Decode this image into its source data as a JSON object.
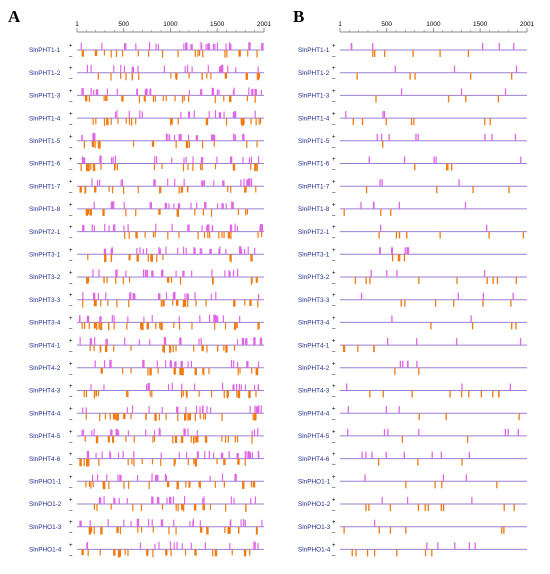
{
  "panels": [
    {
      "letter": "A",
      "ruler": {
        "min": 1,
        "max": 2001,
        "ticks": [
          1,
          500,
          1000,
          1500,
          2001
        ]
      },
      "density": "high",
      "genes": [
        "SlnPHT1-1",
        "SlnPHT1-2",
        "SlnPHT1-3",
        "SlnPHT1-4",
        "SlnPHT1-5",
        "SlnPHT1-6",
        "SlnPHT1-7",
        "SlnPHT1-8",
        "SlnPHT2-1",
        "SlnPHT3-1",
        "SlnPHT3-2",
        "SlnPHT3-3",
        "SlnPHT3-4",
        "SlnPHT4-1",
        "SlnPHT4-2",
        "SlnPHT4-3",
        "SlnPHT4-4",
        "SlnPHT4-5",
        "SlnPHT4-6",
        "SlnPHO1-1",
        "SlnPHO1-2",
        "SlnPHO1-3",
        "SlnPHO1-4"
      ]
    },
    {
      "letter": "B",
      "ruler": {
        "min": 1,
        "max": 2001,
        "ticks": [
          1,
          500,
          1000,
          1500,
          2001
        ]
      },
      "density": "low",
      "genes": [
        "SlnPHT1-1",
        "SlnPHT1-2",
        "SlnPHT1-3",
        "SlnPHT1-4",
        "SlnPHT1-5",
        "SlnPHT1-6",
        "SlnPHT1-7",
        "SlnPHT1-8",
        "SlnPHT2-1",
        "SlnPHT3-1",
        "SlnPHT3-2",
        "SlnPHT3-3",
        "SlnPHT3-4",
        "SlnPHT4-1",
        "SlnPHT4-2",
        "SlnPHT4-3",
        "SlnPHT4-4",
        "SlnPHT4-5",
        "SlnPHT4-6",
        "SlnPHO1-1",
        "SlnPHO1-2",
        "SlnPHO1-3",
        "SlnPHO1-4"
      ]
    }
  ],
  "strand_signs": {
    "plus": "+",
    "minus": "–"
  },
  "colors": {
    "plus_site": "#e066e8",
    "minus_site": "#f07a10",
    "backbone": "#9b7fd1",
    "gene_label": "#1f2d8c",
    "ruler": "#888888"
  }
}
